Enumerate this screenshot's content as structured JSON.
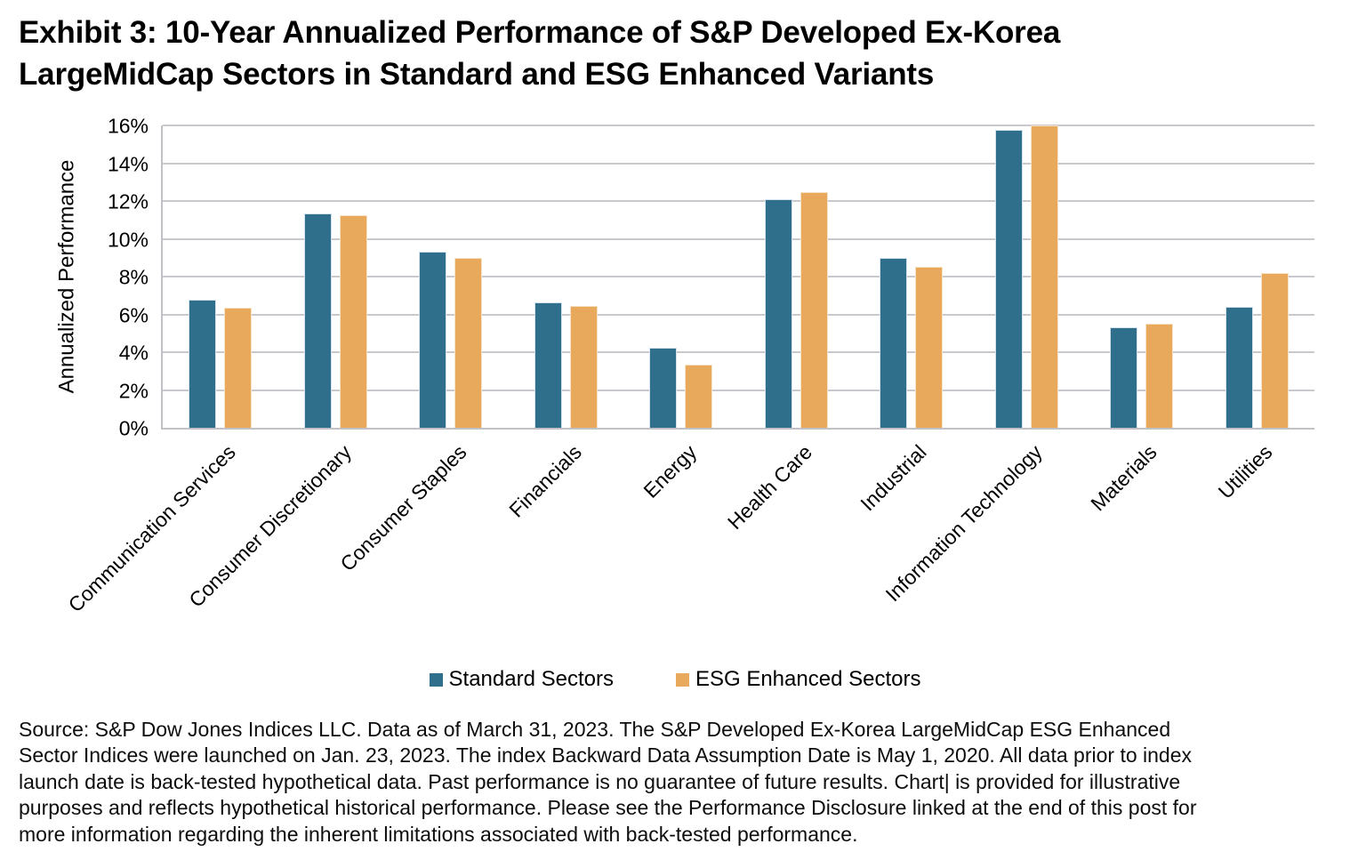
{
  "page": {
    "title": "Exhibit 3: 10-Year Annualized Performance of S&P Developed Ex-Korea LargeMidCap Sectors in Standard and ESG Enhanced Variants"
  },
  "chart_data": {
    "type": "bar",
    "title": "Exhibit 3: 10-Year Annualized Performance of S&P Developed Ex-Korea LargeMidCap Sectors in Standard and ESG Enhanced Variants",
    "xlabel": "",
    "ylabel": "Annualized Performance",
    "ylim": [
      0,
      16
    ],
    "ytick_step": 2,
    "ytick_suffix": "%",
    "grid": "horizontal gridlines on",
    "legend_position": "bottom-center",
    "categories": [
      "Communication Services",
      "Consumer Discretionary",
      "Consumer Staples",
      "Financials",
      "Energy",
      "Health Care",
      "Industrial",
      "Information Technology",
      "Materials",
      "Utilities"
    ],
    "series": [
      {
        "name": "Standard Sectors",
        "color": "#2F6F8C",
        "border_color": "#d3e2ec",
        "values": [
          6.8,
          11.35,
          9.3,
          6.65,
          4.25,
          12.1,
          9.0,
          15.75,
          5.3,
          6.4
        ]
      },
      {
        "name": "ESG Enhanced Sectors",
        "color": "#E9A95C",
        "border_color": "#f6e3c6",
        "values": [
          6.35,
          11.25,
          9.0,
          6.45,
          3.35,
          12.45,
          8.5,
          16.0,
          5.5,
          8.2
        ]
      }
    ]
  },
  "footnote": {
    "lines": [
      "Source: S&P Dow Jones Indices LLC. Data as of March 31, 2023. The S&P Developed Ex-Korea LargeMidCap ESG Enhanced",
      "Sector Indices were launched on Jan. 23, 2023. The index Backward Data Assumption Date is May 1, 2020. All data prior to index",
      "launch date is back-tested hypothetical data. Past performance is no guarantee of future results. Chart| is provided for illustrative",
      "purposes and reflects hypothetical historical performance. Please see the Performance Disclosure linked at the end of this post for",
      "more information regarding the inherent limitations associated with back-tested performance."
    ]
  },
  "colors": {
    "standard_series": "#2F6F8C",
    "esg_series": "#E9A95C",
    "gridline": "#C9C9CD",
    "axis_line": "#C2C2C6",
    "text": "#000000"
  }
}
